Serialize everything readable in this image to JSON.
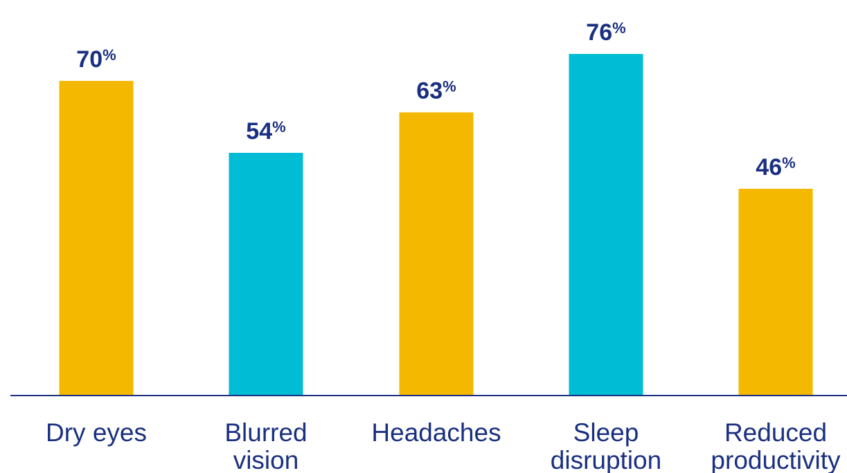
{
  "chart_data": {
    "type": "bar",
    "title": "",
    "xlabel": "",
    "ylabel": "",
    "categories": [
      "Dry eyes",
      "Blurred vision",
      "Headaches",
      "Sleep disruption",
      "Reduced productivity"
    ],
    "category_lines": [
      [
        "Dry eyes"
      ],
      [
        "Blurred",
        "vision"
      ],
      [
        "Headaches"
      ],
      [
        "Sleep",
        "disruption"
      ],
      [
        "Reduced",
        "productivity"
      ]
    ],
    "values": [
      70,
      54,
      63,
      76,
      46
    ],
    "value_labels": [
      "70",
      "54",
      "63",
      "76",
      "46"
    ],
    "value_unit": "%",
    "bar_colors": [
      "#f4b800",
      "#00bcd4",
      "#f4b800",
      "#00bcd4",
      "#f4b800"
    ],
    "ylim": [
      0,
      100
    ],
    "grid": false,
    "legend": "none"
  },
  "colors": {
    "text": "#1a2f80",
    "axis": "#1a2f80"
  }
}
